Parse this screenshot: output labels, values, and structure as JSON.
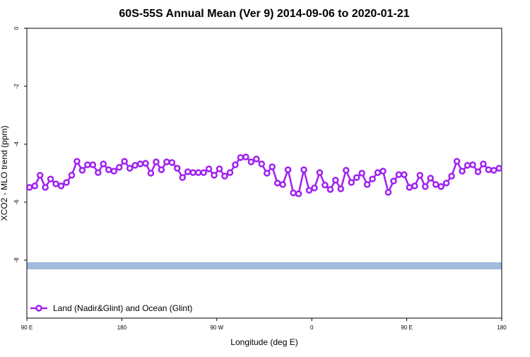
{
  "chart_data": {
    "type": "line",
    "title": "60S-55S Annual Mean (Ver 9)   2014-09-06 to 2020-01-21",
    "x_label": "Longitude (deg E)",
    "y_label": "XCO2 - MLO trend (ppm)",
    "x": [
      92.5,
      97.5,
      102.5,
      107.5,
      112.5,
      117.5,
      122.5,
      127.5,
      132.5,
      137.5,
      142.5,
      147.5,
      152.5,
      157.5,
      162.5,
      167.5,
      172.5,
      177.5,
      182.5,
      187.5,
      192.5,
      197.5,
      202.5,
      207.5,
      212.5,
      217.5,
      222.5,
      227.5,
      232.5,
      237.5,
      242.5,
      247.5,
      252.5,
      257.5,
      262.5,
      267.5,
      272.5,
      277.5,
      282.5,
      287.5,
      292.5,
      297.5,
      302.5,
      307.5,
      312.5,
      317.5,
      322.5,
      327.5,
      332.5,
      337.5,
      342.5,
      347.5,
      352.5,
      357.5,
      362.5,
      367.5,
      372.5,
      377.5,
      382.5,
      387.5,
      392.5,
      397.5,
      402.5,
      407.5,
      412.5,
      417.5,
      422.5,
      427.5,
      432.5,
      437.5,
      442.5,
      447.5,
      452.5,
      457.5,
      462.5,
      467.5,
      472.5,
      477.5,
      482.5,
      487.5,
      492.5,
      497.5,
      502.5,
      507.5,
      512.5,
      517.5,
      522.5,
      527.5,
      532.5,
      537.5
    ],
    "series": [
      {
        "name": "Land (Nadir&Glint) and Ocean (Glint)",
        "color": "#a020f0",
        "values": [
          -5.49,
          -5.44,
          -5.07,
          -5.49,
          -5.2,
          -5.37,
          -5.44,
          -5.32,
          -5.07,
          -4.59,
          -4.9,
          -4.71,
          -4.71,
          -4.98,
          -4.68,
          -4.88,
          -4.93,
          -4.8,
          -4.59,
          -4.83,
          -4.73,
          -4.68,
          -4.66,
          -5.0,
          -4.61,
          -4.88,
          -4.61,
          -4.63,
          -4.83,
          -5.15,
          -4.95,
          -4.98,
          -4.98,
          -4.98,
          -4.85,
          -5.07,
          -4.85,
          -5.1,
          -4.98,
          -4.71,
          -4.46,
          -4.44,
          -4.61,
          -4.51,
          -4.68,
          -5.0,
          -4.78,
          -5.34,
          -5.39,
          -4.88,
          -5.68,
          -5.71,
          -4.88,
          -5.59,
          -5.51,
          -4.98,
          -5.41,
          -5.56,
          -5.24,
          -5.54,
          -4.9,
          -5.32,
          -5.15,
          -5.0,
          -5.39,
          -5.2,
          -4.98,
          -4.93,
          -5.66,
          -5.27,
          -5.05,
          -5.05,
          -5.49,
          -5.44,
          -5.07,
          -5.46,
          -5.17,
          -5.39,
          -5.46,
          -5.34,
          -5.1,
          -4.59,
          -4.93,
          -4.73,
          -4.71,
          -4.95,
          -4.68,
          -4.88,
          -4.9,
          -4.83
        ]
      }
    ],
    "xlim": [
      90,
      540
    ],
    "xticks": [
      {
        "value": 90,
        "label": "90 E"
      },
      180,
      {
        "value": 270,
        "label": "90 W"
      },
      {
        "value": 360,
        "label": "0"
      },
      {
        "value": 450,
        "label": "90 E"
      },
      {
        "value": 540,
        "label": "180"
      }
    ],
    "ylim": [
      -10,
      0
    ],
    "yticks": [
      0,
      -2,
      -4,
      -6,
      -8
    ],
    "legend_position": "lower-left"
  }
}
